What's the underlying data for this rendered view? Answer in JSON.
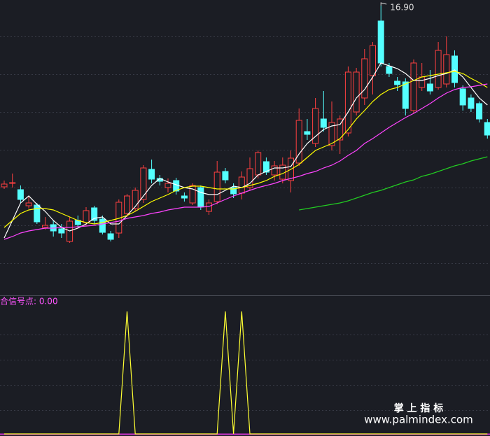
{
  "chart_data": [
    {
      "type": "candlestick",
      "up_color": "#ff4040",
      "down_color": "#54ffff",
      "ylim": [
        8.62,
        17.06
      ],
      "open": [
        11.72,
        11.82,
        11.64,
        11.18,
        11.2,
        10.56,
        10.64,
        10.52,
        10.16,
        10.76,
        10.7,
        11.12,
        10.8,
        10.38,
        10.4,
        10.96,
        11.1,
        11.36,
        12.22,
        11.96,
        11.7,
        11.9,
        11.46,
        11.26,
        11.7,
        11.02,
        11.3,
        12.16,
        11.7,
        11.54,
        11.7,
        12.06,
        12.44,
        12.06,
        11.94,
        11.9,
        12.4,
        13.3,
        12.96,
        13.66,
        12.9,
        13.06,
        13.26,
        13.86,
        14.26,
        14.9,
        16.46,
        15.16,
        14.74,
        14.72,
        13.9,
        14.56,
        14.66,
        14.56,
        14.66,
        15.46,
        14.52,
        14.26,
        14.1,
        13.56
      ],
      "high": [
        11.9,
        12.1,
        11.76,
        11.46,
        11.26,
        10.86,
        10.76,
        10.66,
        10.86,
        10.9,
        11.14,
        11.18,
        10.9,
        10.46,
        11.36,
        11.52,
        11.7,
        12.34,
        12.5,
        12.06,
        11.96,
        11.98,
        11.56,
        11.82,
        11.76,
        11.36,
        12.46,
        12.26,
        11.82,
        12.16,
        12.56,
        12.76,
        12.56,
        12.46,
        12.56,
        12.76,
        13.96,
        13.66,
        14.26,
        14.46,
        14.16,
        13.76,
        15.16,
        15.12,
        15.66,
        15.86,
        16.9,
        15.26,
        14.86,
        14.82,
        15.36,
        15.26,
        15.06,
        15.86,
        16.02,
        15.62,
        14.62,
        14.36,
        14.16,
        13.66
      ],
      "low": [
        11.66,
        11.7,
        11.26,
        11.1,
        10.66,
        10.5,
        10.3,
        10.26,
        10.12,
        10.56,
        10.62,
        10.66,
        10.36,
        10.16,
        10.26,
        10.86,
        11.02,
        11.26,
        11.82,
        11.76,
        11.56,
        11.5,
        11.3,
        11.2,
        11.06,
        10.92,
        11.22,
        11.82,
        11.4,
        11.36,
        11.62,
        11.96,
        12.06,
        11.9,
        11.82,
        11.56,
        12.32,
        13.06,
        12.86,
        13.3,
        12.76,
        12.66,
        13.16,
        13.76,
        14.06,
        14.36,
        15.16,
        14.86,
        14.46,
        13.76,
        13.82,
        14.46,
        14.36,
        14.5,
        14.56,
        14.56,
        13.9,
        13.86,
        13.56,
        13.1
      ],
      "close": [
        11.8,
        11.84,
        11.36,
        11.26,
        10.72,
        10.62,
        10.46,
        10.4,
        10.74,
        10.64,
        11.04,
        10.76,
        10.42,
        10.22,
        11.28,
        11.46,
        11.62,
        12.26,
        11.94,
        11.88,
        11.82,
        11.6,
        11.4,
        11.76,
        11.16,
        11.26,
        12.14,
        11.92,
        11.52,
        12.0,
        12.24,
        12.7,
        12.14,
        12.32,
        12.34,
        12.54,
        13.62,
        13.22,
        13.96,
        13.42,
        13.56,
        13.66,
        15.0,
        15.0,
        15.38,
        15.76,
        15.26,
        14.96,
        14.64,
        13.96,
        15.26,
        14.86,
        14.46,
        15.62,
        15.5,
        14.7,
        14.06,
        13.96,
        13.66,
        13.2
      ],
      "series": [
        {
          "color": "#ffffff",
          "values": [
            10.26,
            10.76,
            11.26,
            11.46,
            11.22,
            11.02,
            10.76,
            10.56,
            10.46,
            10.54,
            10.66,
            10.82,
            10.86,
            10.66,
            10.66,
            10.9,
            11.16,
            11.46,
            11.76,
            11.96,
            11.86,
            11.78,
            11.7,
            11.66,
            11.56,
            11.5,
            11.5,
            11.62,
            11.74,
            11.7,
            11.82,
            12.06,
            12.16,
            12.26,
            12.26,
            12.3,
            12.66,
            12.96,
            13.16,
            13.36,
            13.46,
            13.5,
            13.86,
            14.26,
            14.5,
            14.86,
            15.26,
            15.18,
            15.1,
            14.96,
            14.76,
            14.76,
            14.82,
            14.9,
            14.96,
            15.06,
            14.86,
            14.56,
            14.26,
            14.06
          ]
        },
        {
          "color": "#ffff00",
          "values": [
            10.56,
            10.76,
            10.96,
            11.06,
            11.1,
            11.1,
            11.06,
            10.96,
            10.86,
            10.76,
            10.7,
            10.66,
            10.7,
            10.76,
            10.82,
            10.9,
            11.02,
            11.16,
            11.3,
            11.4,
            11.5,
            11.62,
            11.7,
            11.74,
            11.74,
            11.7,
            11.66,
            11.66,
            11.66,
            11.7,
            11.76,
            11.82,
            11.9,
            12.02,
            12.1,
            12.22,
            12.36,
            12.56,
            12.76,
            12.86,
            12.96,
            13.1,
            13.36,
            13.66,
            13.9,
            14.16,
            14.36,
            14.5,
            14.56,
            14.66,
            14.76,
            14.86,
            14.9,
            14.94,
            14.98,
            15.02,
            14.96,
            14.82,
            14.7,
            14.56
          ]
        },
        {
          "color": "#ff44ff",
          "values": [
            10.22,
            10.3,
            10.4,
            10.46,
            10.5,
            10.54,
            10.54,
            10.56,
            10.56,
            10.58,
            10.6,
            10.62,
            10.66,
            10.7,
            10.74,
            10.82,
            10.86,
            10.9,
            10.96,
            11.0,
            11.06,
            11.1,
            11.14,
            11.14,
            11.14,
            11.16,
            11.26,
            11.36,
            11.46,
            11.54,
            11.62,
            11.7,
            11.76,
            11.82,
            11.9,
            11.96,
            12.02,
            12.1,
            12.16,
            12.26,
            12.34,
            12.46,
            12.62,
            12.76,
            12.96,
            13.1,
            13.26,
            13.42,
            13.56,
            13.7,
            13.82,
            13.96,
            14.1,
            14.26,
            14.4,
            14.5,
            14.56,
            14.58,
            14.62,
            14.66
          ]
        },
        {
          "color": "#22cc22",
          "values": [
            null,
            null,
            null,
            null,
            null,
            null,
            null,
            null,
            null,
            null,
            null,
            null,
            null,
            null,
            null,
            null,
            null,
            null,
            null,
            null,
            null,
            null,
            null,
            null,
            null,
            null,
            null,
            null,
            null,
            null,
            null,
            null,
            null,
            null,
            null,
            null,
            11.06,
            11.1,
            11.14,
            11.18,
            11.22,
            11.26,
            11.32,
            11.4,
            11.48,
            11.56,
            11.62,
            11.7,
            11.78,
            11.86,
            11.92,
            12.02,
            12.08,
            12.16,
            12.24,
            12.32,
            12.38,
            12.46,
            12.52,
            12.58
          ]
        }
      ],
      "annotations": [
        {
          "text": "16.90",
          "value": 16.9
        }
      ]
    },
    {
      "type": "line",
      "title": "合信号点: 0.00",
      "title_color": "#ff55ff",
      "ylim": [
        0,
        1
      ],
      "series": [
        {
          "color": "#ffff33",
          "values": [
            0,
            0,
            0,
            0,
            0,
            0,
            0,
            0,
            0,
            0,
            0,
            0,
            0,
            0,
            0,
            1,
            0,
            0,
            0,
            0,
            0,
            0,
            0,
            0,
            0,
            0,
            0,
            1,
            0,
            1,
            0,
            0,
            0,
            0,
            0,
            0,
            0,
            0,
            0,
            0,
            0,
            0,
            0,
            0,
            0,
            0,
            0,
            0,
            0,
            0,
            0,
            0,
            0,
            0,
            0,
            0,
            0,
            0,
            0,
            0
          ]
        }
      ]
    }
  ],
  "watermark": {
    "title": "掌 上 指 标",
    "url": "www.palmindex.com"
  }
}
